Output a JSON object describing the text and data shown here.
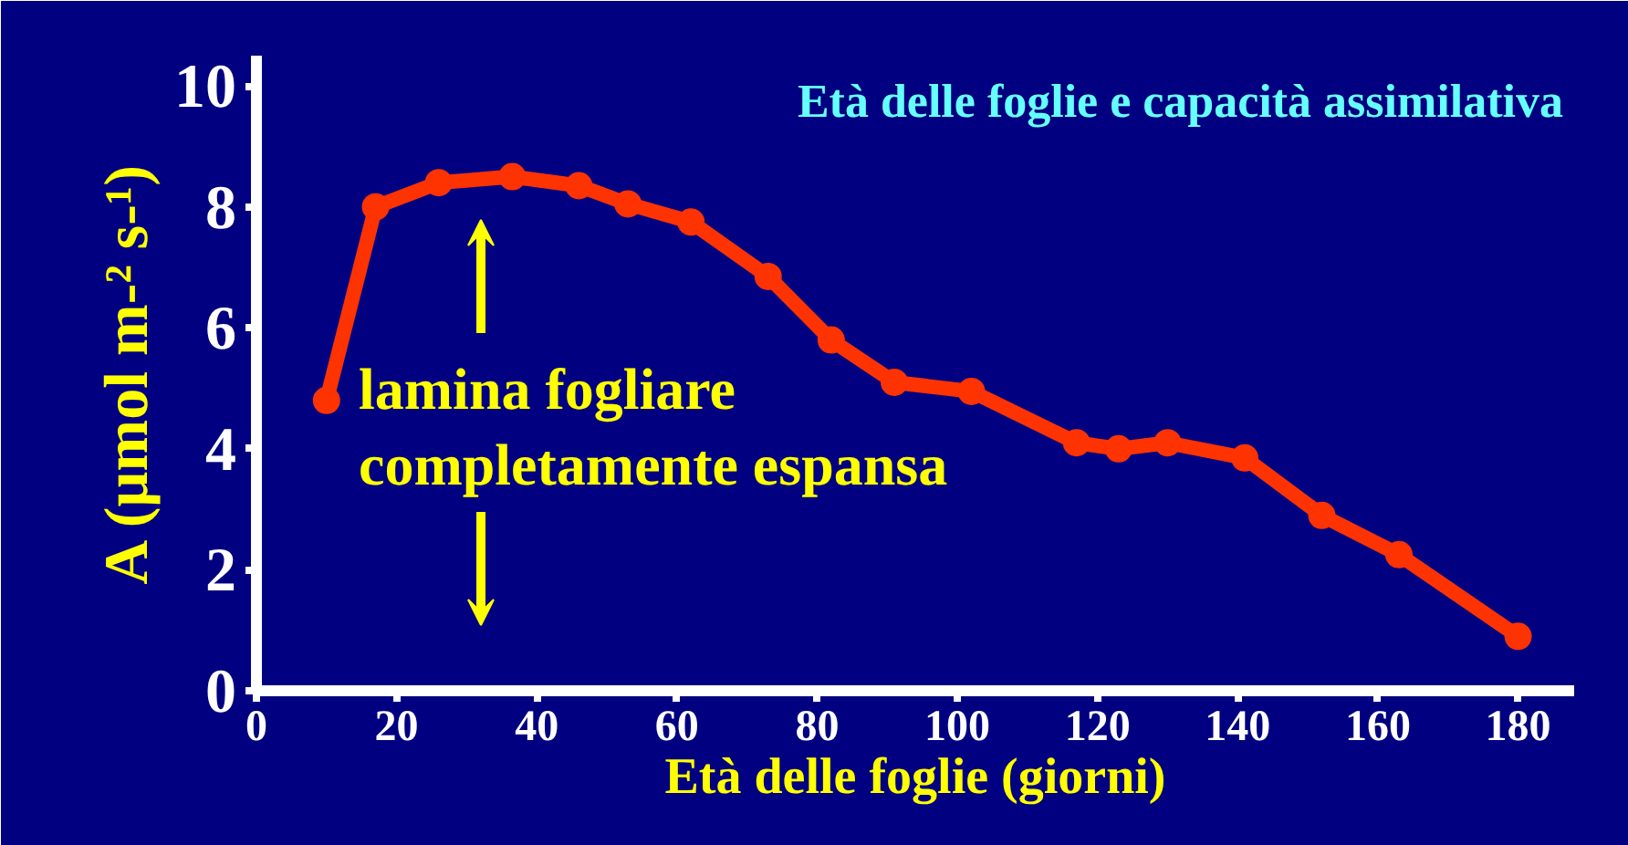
{
  "chart_data": {
    "type": "line",
    "title": "Età delle foglie e capacità assimilativa",
    "xlabel": "Età delle foglie (giorni)",
    "ylabel": "A (µmol m-² s-¹)",
    "x": [
      10,
      17,
      26,
      36.5,
      46,
      53,
      62,
      73,
      82,
      91,
      102,
      117,
      123,
      130,
      141,
      152,
      163,
      180
    ],
    "series": [
      {
        "color": "#ff3300",
        "values": [
          4.8,
          8.0,
          8.4,
          8.5,
          8.35,
          8.05,
          7.75,
          6.85,
          5.8,
          5.1,
          4.95,
          4.1,
          4.0,
          4.1,
          3.85,
          2.9,
          2.25,
          0.9
        ]
      }
    ],
    "xlim": [
      0,
      188
    ],
    "xticks": [
      0,
      20,
      40,
      60,
      80,
      100,
      120,
      140,
      160,
      180
    ],
    "ylim": [
      0,
      10.5
    ],
    "yticks": [
      0,
      2,
      4,
      6,
      8,
      10
    ],
    "annotations": [
      "lamina fogliare\ncompletamente espansa"
    ],
    "grid": false,
    "marker": "circle",
    "line_style": "solid"
  }
}
